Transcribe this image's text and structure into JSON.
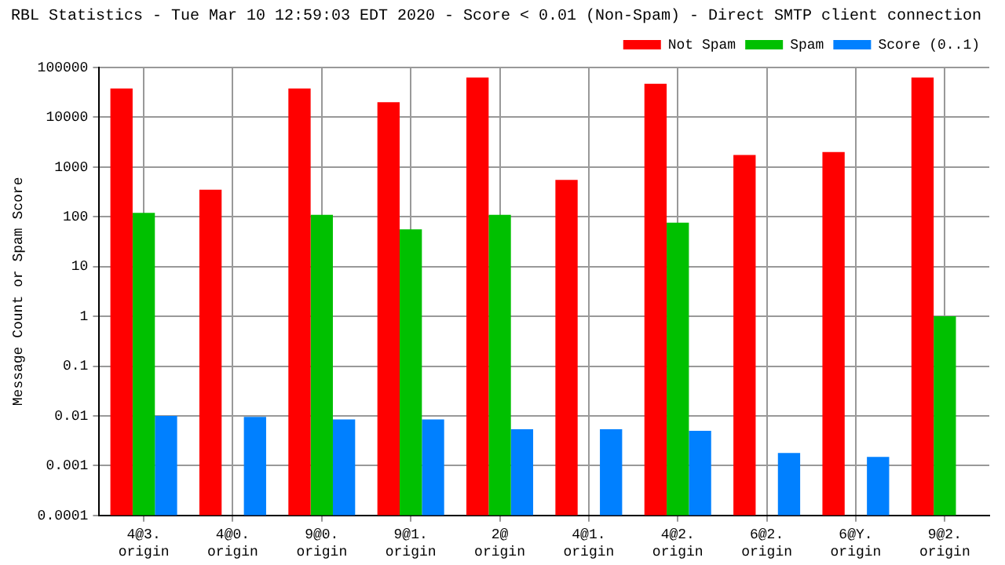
{
  "chart_data": {
    "type": "bar",
    "title": "RBL Statistics - Tue Mar 10 12:59:03 EDT 2020 - Score < 0.01 (Non-Spam) - Direct SMTP client connection",
    "ylabel": "Message Count or Spam Score",
    "categories": [
      "4@3. origin",
      "4@0. origin",
      "9@0. origin",
      "9@1. origin",
      "2@ origin",
      "4@1. origin",
      "4@2. origin",
      "6@2. origin",
      "6@Y. origin",
      "9@2. origin"
    ],
    "series": [
      {
        "name": "Not Spam",
        "color": "#ff0000",
        "values": [
          38000,
          350,
          38000,
          20000,
          63000,
          550,
          47000,
          1750,
          2000,
          63000
        ]
      },
      {
        "name": "Spam",
        "color": "#00c000",
        "values": [
          120,
          null,
          110,
          56,
          110,
          null,
          76,
          null,
          null,
          1
        ]
      },
      {
        "name": "Score (0..1)",
        "color": "#0080ff",
        "values": [
          0.01,
          0.0095,
          0.0085,
          0.0085,
          0.0054,
          0.0054,
          0.005,
          0.0018,
          0.0015,
          null
        ]
      }
    ],
    "log": "y",
    "ylim": [
      0.0001,
      100000
    ],
    "yticks": [
      {
        "value": 0.0001,
        "label": "0.0001"
      },
      {
        "value": 0.001,
        "label": "0.001"
      },
      {
        "value": 0.01,
        "label": "0.01"
      },
      {
        "value": 0.1,
        "label": "0.1"
      },
      {
        "value": 1,
        "label": "1"
      },
      {
        "value": 10,
        "label": "10"
      },
      {
        "value": 100,
        "label": "100"
      },
      {
        "value": 1000,
        "label": "1000"
      },
      {
        "value": 10000,
        "label": "10000"
      },
      {
        "value": 100000,
        "label": "100000"
      }
    ],
    "grid": true,
    "legend": "top right"
  }
}
